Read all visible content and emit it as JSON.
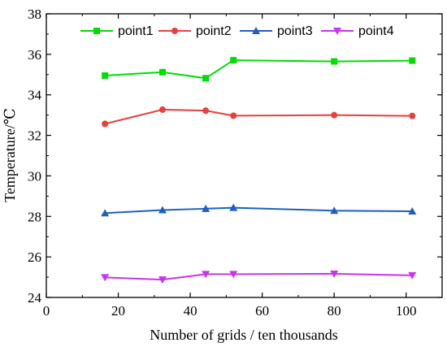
{
  "chart_data": {
    "type": "line",
    "xlabel": "Number of grids / ten thousands",
    "ylabel": "Temperature/℃",
    "xlim": [
      0,
      110
    ],
    "ylim": [
      24,
      38
    ],
    "xticks": [
      0,
      20,
      40,
      60,
      80,
      100
    ],
    "yticks": [
      24,
      26,
      28,
      30,
      32,
      34,
      36,
      38
    ],
    "x": [
      16.3,
      32.3,
      44.3,
      52.0,
      80.0,
      101.7
    ],
    "legend_position": "top",
    "grid": false,
    "series": [
      {
        "name": "point1",
        "color": "#00dd00",
        "marker": "square",
        "values": [
          34.95,
          35.12,
          34.82,
          35.71,
          35.65,
          35.69
        ]
      },
      {
        "name": "point2",
        "color": "#e8403a",
        "marker": "circle",
        "values": [
          32.57,
          33.27,
          33.22,
          32.97,
          33.0,
          32.96
        ]
      },
      {
        "name": "point3",
        "color": "#1f5fbf",
        "marker": "triangle-up",
        "values": [
          28.16,
          28.31,
          28.38,
          28.43,
          28.28,
          28.25
        ]
      },
      {
        "name": "point4",
        "color": "#cc33ee",
        "marker": "triangle-down",
        "values": [
          24.99,
          24.88,
          25.15,
          25.15,
          25.17,
          25.09
        ]
      }
    ]
  }
}
